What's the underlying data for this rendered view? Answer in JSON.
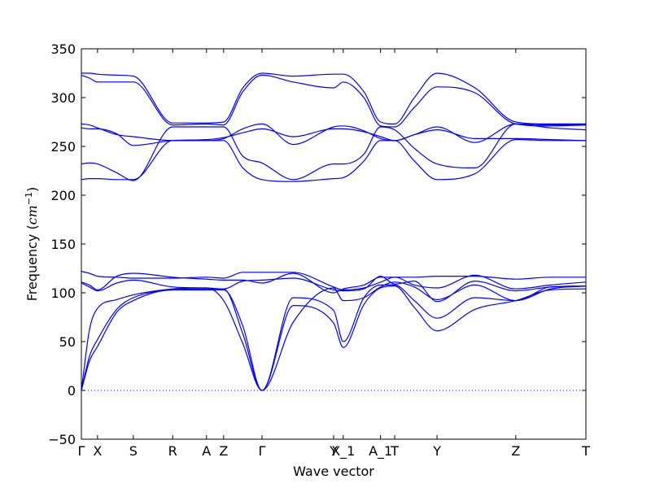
{
  "chart_data": {
    "type": "line",
    "title": "",
    "xlabel": "Wave vector",
    "ylabel": {
      "prefix": "Frequency (",
      "unit": "cm",
      "exponent": "−1",
      "suffix": ")"
    },
    "ylim": [
      -50,
      350
    ],
    "yticks": [
      -50,
      0,
      50,
      100,
      150,
      200,
      250,
      300,
      350
    ],
    "ytick_labels": [
      "−50",
      "0",
      "50",
      "100",
      "150",
      "200",
      "250",
      "300",
      "350"
    ],
    "grid": false,
    "line_color": "#0000ff",
    "zero_line": {
      "y": 0,
      "style": "dotted",
      "color": "#0000ff"
    },
    "high_symmetry_points": [
      {
        "label": "Γ",
        "x": 0.0
      },
      {
        "label": "X",
        "x": 0.032
      },
      {
        "label": "S",
        "x": 0.103
      },
      {
        "label": "R",
        "x": 0.181
      },
      {
        "label": "A",
        "x": 0.248
      },
      {
        "label": "Z",
        "x": 0.282
      },
      {
        "label": "Γ",
        "x": 0.358
      },
      {
        "label": "Y",
        "x": 0.5
      },
      {
        "label": "X_1",
        "x": 0.519
      },
      {
        "label": "A_1",
        "x": 0.593
      },
      {
        "label": "T",
        "x": 0.621
      },
      {
        "label": "Y",
        "x": 0.705
      },
      {
        "label": "Z",
        "x": 0.861
      },
      {
        "label": "T",
        "x": 1.0
      }
    ],
    "series": [
      {
        "x": [
          0,
          0.016,
          0.032,
          0.07,
          0.103,
          0.181,
          0.248,
          0.282,
          0.32,
          0.358,
          0.42,
          0.5,
          0.519,
          0.56,
          0.593,
          0.621,
          0.66,
          0.705,
          0.78,
          0.861,
          0.93,
          1.0
        ],
        "y": [
          122,
          120,
          117,
          116,
          115,
          115,
          116,
          115,
          121,
          121,
          121,
          106,
          103,
          105,
          111,
          116,
          116,
          117,
          117,
          114,
          116,
          116
        ]
      },
      {
        "x": [
          0,
          0.016,
          0.032,
          0.07,
          0.103,
          0.181,
          0.248,
          0.282,
          0.32,
          0.358,
          0.42,
          0.5,
          0.519,
          0.56,
          0.593,
          0.621,
          0.66,
          0.705,
          0.78,
          0.861,
          0.93,
          1.0
        ],
        "y": [
          111,
          108,
          103,
          117,
          120,
          116,
          114,
          113,
          113,
          110,
          120,
          100,
          104,
          108,
          116,
          116,
          108,
          105,
          118,
          104,
          108,
          111
        ]
      },
      {
        "x": [
          0,
          0.016,
          0.032,
          0.07,
          0.103,
          0.181,
          0.248,
          0.282,
          0.32,
          0.358,
          0.42,
          0.5,
          0.519,
          0.56,
          0.593,
          0.621,
          0.66,
          0.705,
          0.78,
          0.861,
          0.93,
          1.0
        ],
        "y": [
          110,
          106,
          102,
          110,
          113,
          106,
          105,
          104,
          112,
          113,
          115,
          103,
          102,
          104,
          117,
          109,
          112,
          91,
          112,
          102,
          106,
          107
        ]
      },
      {
        "x": [
          0,
          0.016,
          0.032,
          0.07,
          0.103,
          0.181,
          0.248,
          0.282,
          0.32,
          0.358,
          0.42,
          0.5,
          0.519,
          0.56,
          0.593,
          0.621,
          0.66,
          0.705,
          0.78,
          0.861,
          0.93,
          1.0
        ],
        "y": [
          0,
          62,
          84,
          93,
          98,
          104,
          105,
          92,
          48,
          0,
          70,
          105,
          92,
          95,
          106,
          111,
          106,
          93,
          108,
          92,
          104,
          107
        ]
      },
      {
        "x": [
          0,
          0.016,
          0.032,
          0.07,
          0.103,
          0.181,
          0.248,
          0.282,
          0.32,
          0.358,
          0.42,
          0.5,
          0.519,
          0.56,
          0.593,
          0.621,
          0.66,
          0.705,
          0.78,
          0.861,
          0.93,
          1.0
        ],
        "y": [
          0,
          35,
          52,
          83,
          95,
          103,
          104,
          104,
          58,
          0,
          95,
          82,
          50,
          95,
          108,
          108,
          92,
          74,
          95,
          92,
          106,
          107
        ]
      },
      {
        "x": [
          0,
          0.016,
          0.032,
          0.07,
          0.103,
          0.181,
          0.248,
          0.282,
          0.32,
          0.358,
          0.42,
          0.5,
          0.519,
          0.56,
          0.593,
          0.621,
          0.66,
          0.705,
          0.78,
          0.861,
          0.93,
          1.0
        ],
        "y": [
          0,
          30,
          45,
          80,
          92,
          103,
          103,
          103,
          66,
          0,
          87,
          69,
          44,
          88,
          105,
          107,
          85,
          61,
          83,
          92,
          103,
          104
        ]
      },
      {
        "x": [
          0,
          0.016,
          0.032,
          0.07,
          0.103,
          0.181,
          0.248,
          0.282,
          0.32,
          0.358,
          0.42,
          0.5,
          0.519,
          0.56,
          0.593,
          0.621,
          0.66,
          0.705,
          0.78,
          0.861,
          0.93,
          1.0
        ],
        "y": [
          325,
          325,
          324,
          323,
          322,
          274,
          274,
          275,
          310,
          325,
          322,
          324,
          324,
          306,
          275,
          273,
          300,
          325,
          310,
          275,
          273,
          273
        ]
      },
      {
        "x": [
          0,
          0.016,
          0.032,
          0.07,
          0.103,
          0.181,
          0.248,
          0.282,
          0.32,
          0.358,
          0.42,
          0.5,
          0.519,
          0.56,
          0.593,
          0.621,
          0.66,
          0.705,
          0.78,
          0.861,
          0.93,
          1.0
        ],
        "y": [
          323,
          320,
          316,
          316,
          316,
          272,
          273,
          272,
          306,
          323,
          316,
          310,
          316,
          300,
          271,
          270,
          290,
          311,
          305,
          273,
          271,
          272
        ]
      },
      {
        "x": [
          0,
          0.016,
          0.032,
          0.07,
          0.103,
          0.181,
          0.248,
          0.282,
          0.32,
          0.358,
          0.42,
          0.5,
          0.519,
          0.56,
          0.593,
          0.621,
          0.66,
          0.705,
          0.78,
          0.861,
          0.93,
          1.0
        ],
        "y": [
          273,
          272,
          269,
          262,
          260,
          256,
          256,
          258,
          268,
          273,
          252,
          270,
          271,
          266,
          258,
          256,
          262,
          270,
          254,
          273,
          269,
          267
        ]
      },
      {
        "x": [
          0,
          0.016,
          0.032,
          0.07,
          0.103,
          0.181,
          0.248,
          0.282,
          0.32,
          0.358,
          0.42,
          0.5,
          0.519,
          0.56,
          0.593,
          0.621,
          0.66,
          0.705,
          0.78,
          0.861,
          0.93,
          1.0
        ],
        "y": [
          269,
          268,
          268,
          263,
          251,
          256,
          257,
          259,
          264,
          268,
          260,
          268,
          268,
          265,
          260,
          256,
          262,
          267,
          258,
          258,
          257,
          256
        ]
      },
      {
        "x": [
          0,
          0.016,
          0.032,
          0.07,
          0.103,
          0.181,
          0.248,
          0.282,
          0.32,
          0.358,
          0.42,
          0.5,
          0.519,
          0.56,
          0.593,
          0.621,
          0.66,
          0.705,
          0.78,
          0.861,
          0.93,
          1.0
        ],
        "y": [
          232,
          233,
          232,
          223,
          215,
          270,
          270,
          270,
          240,
          233,
          216,
          232,
          232,
          242,
          270,
          267,
          248,
          232,
          228,
          273,
          272,
          272
        ]
      },
      {
        "x": [
          0,
          0.016,
          0.032,
          0.07,
          0.103,
          0.181,
          0.248,
          0.282,
          0.32,
          0.358,
          0.42,
          0.5,
          0.519,
          0.56,
          0.593,
          0.621,
          0.66,
          0.705,
          0.78,
          0.861,
          0.93,
          1.0
        ],
        "y": [
          216,
          217,
          217,
          216,
          216,
          256,
          256,
          256,
          228,
          216,
          214,
          217,
          218,
          235,
          256,
          256,
          235,
          216,
          222,
          257,
          256,
          256
        ]
      }
    ]
  }
}
